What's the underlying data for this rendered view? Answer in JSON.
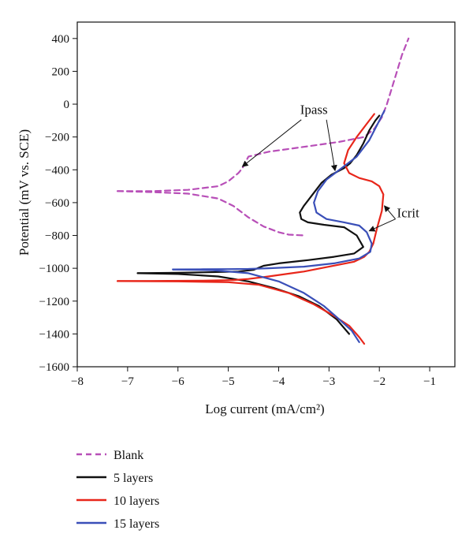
{
  "chart_data": {
    "type": "line",
    "xlabel": "Log current (mA/cm²)",
    "ylabel": "Potential (mV vs. SCE)",
    "xlim": [
      -8,
      -0.5
    ],
    "ylim": [
      -1600,
      500
    ],
    "xticks": [
      -8,
      -7,
      -6,
      -5,
      -4,
      -3,
      -2,
      -1
    ],
    "yticks": [
      400,
      200,
      0,
      -200,
      -400,
      -600,
      -800,
      -1000,
      -1200,
      -1400,
      -1600
    ],
    "xtick_labels": [
      "−8",
      "−7",
      "−6",
      "−5",
      "−4",
      "−3",
      "−2",
      "−1"
    ],
    "ytick_labels": [
      "400",
      "200",
      "0",
      "−200",
      "−400",
      "−600",
      "−800",
      "−1000",
      "−1200",
      "−1400",
      "−1600"
    ],
    "grid": false,
    "legend_position": "below",
    "annotations": [
      {
        "text": "Ipass",
        "x": -3.3,
        "y": -60
      },
      {
        "text": "Icrit",
        "x": -1.65,
        "y": -690
      }
    ],
    "series": [
      {
        "name": "Blank",
        "color": "#b84fb8",
        "dash": true,
        "x": [
          -7.2,
          -6.5,
          -5.8,
          -5.2,
          -5.0,
          -4.8,
          -4.72,
          -4.6,
          -4.2,
          -3.5,
          -2.8,
          -2.3,
          -2.1,
          -1.95,
          -1.85,
          -1.75,
          -1.65,
          -1.55,
          -1.42
        ],
        "y": [
          -530,
          -530,
          -522,
          -500,
          -470,
          -420,
          -390,
          -320,
          -290,
          -260,
          -230,
          -200,
          -150,
          -80,
          0,
          100,
          200,
          300,
          400
        ],
        "x2": [
          -7.2,
          -6.5,
          -5.8,
          -5.2,
          -4.9,
          -4.6,
          -4.3,
          -4.0,
          -3.8,
          -3.5
        ],
        "y2": [
          -530,
          -536,
          -545,
          -575,
          -620,
          -690,
          -745,
          -780,
          -795,
          -800
        ]
      },
      {
        "name": "5 layers",
        "color": "#111111",
        "dash": false,
        "x": [
          -2.0,
          -2.08,
          -2.2,
          -2.32,
          -2.45,
          -2.58,
          -2.7,
          -2.95,
          -3.15,
          -3.35,
          -3.5,
          -3.58,
          -3.55,
          -3.42,
          -3.1,
          -2.7,
          -2.45,
          -2.32,
          -2.5,
          -2.9,
          -3.4,
          -4.0,
          -4.3,
          -4.5,
          -4.8,
          -5.5,
          -6.2,
          -6.8
        ],
        "y": [
          -70,
          -100,
          -160,
          -240,
          -310,
          -360,
          -390,
          -430,
          -480,
          -560,
          -620,
          -660,
          -700,
          -720,
          -735,
          -750,
          -800,
          -870,
          -910,
          -930,
          -950,
          -970,
          -985,
          -1010,
          -1020,
          -1025,
          -1028,
          -1030
        ],
        "x2": [
          -6.8,
          -6.0,
          -5.2,
          -4.6,
          -4.1,
          -3.6,
          -3.2,
          -2.85,
          -2.6
        ],
        "y2": [
          -1030,
          -1035,
          -1050,
          -1080,
          -1120,
          -1170,
          -1230,
          -1310,
          -1400
        ]
      },
      {
        "name": "10 layers",
        "color": "#e8261a",
        "dash": false,
        "x": [
          -2.1,
          -2.25,
          -2.45,
          -2.62,
          -2.7,
          -2.6,
          -2.4,
          -2.15,
          -2.0,
          -1.92,
          -1.95,
          -2.05,
          -2.12,
          -2.2,
          -2.3,
          -2.5,
          -3.0,
          -3.5,
          -4.2,
          -4.6,
          -4.9,
          -5.5,
          -6.5,
          -7.2
        ],
        "y": [
          -60,
          -120,
          -200,
          -280,
          -360,
          -420,
          -450,
          -470,
          -500,
          -550,
          -650,
          -760,
          -850,
          -900,
          -930,
          -960,
          -990,
          -1020,
          -1050,
          -1065,
          -1072,
          -1075,
          -1077,
          -1078
        ],
        "x2": [
          -7.2,
          -6.0,
          -5.0,
          -4.4,
          -3.8,
          -3.3,
          -2.9,
          -2.6,
          -2.4,
          -2.3
        ],
        "y2": [
          -1078,
          -1080,
          -1085,
          -1100,
          -1150,
          -1220,
          -1290,
          -1350,
          -1420,
          -1460
        ]
      },
      {
        "name": "15 layers",
        "color": "#3a4fb8",
        "dash": false,
        "x": [
          -1.9,
          -2.0,
          -2.2,
          -2.45,
          -2.75,
          -3.05,
          -3.22,
          -3.3,
          -3.25,
          -3.05,
          -2.7,
          -2.4,
          -2.25,
          -2.15,
          -2.18,
          -2.4,
          -2.9,
          -3.5,
          -4.2,
          -4.6,
          -5.0,
          -5.5,
          -6.1
        ],
        "y": [
          -40,
          -100,
          -220,
          -320,
          -390,
          -460,
          -530,
          -600,
          -660,
          -700,
          -720,
          -740,
          -780,
          -850,
          -900,
          -940,
          -970,
          -990,
          -1000,
          -1004,
          -1005,
          -1006,
          -1007
        ],
        "x2": [
          -6.1,
          -5.3,
          -4.6,
          -4.0,
          -3.5,
          -3.1,
          -2.8,
          -2.55,
          -2.4
        ],
        "y2": [
          -1007,
          -1012,
          -1030,
          -1080,
          -1150,
          -1230,
          -1310,
          -1380,
          -1450
        ]
      }
    ]
  }
}
